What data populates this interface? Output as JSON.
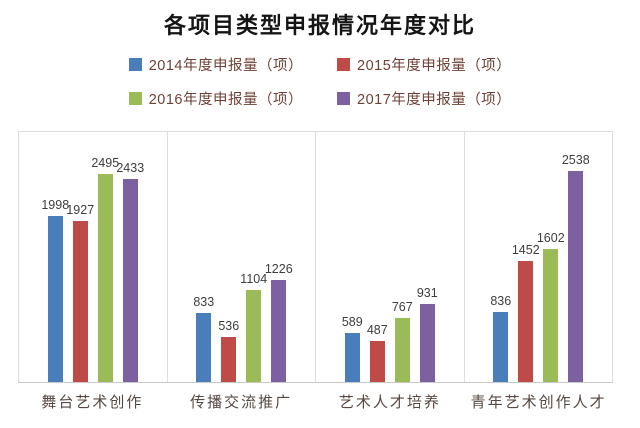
{
  "title": "各项目类型申报情况年度对比",
  "legend": {
    "text_color": "#6e4136",
    "items": [
      {
        "label": "2014年度申报量（项）",
        "color": "#4A7EBB"
      },
      {
        "label": "2015年度申报量（项）",
        "color": "#BE4B48"
      },
      {
        "label": "2016年度申报量（项）",
        "color": "#9BBB59"
      },
      {
        "label": "2017年度申报量（项）",
        "color": "#7D60A0"
      }
    ]
  },
  "chart_data": {
    "type": "bar",
    "title": "各项目类型申报情况年度对比",
    "categories": [
      "舞台艺术创作",
      "传播交流推广",
      "艺术人才培养",
      "青年艺术创作人才"
    ],
    "series": [
      {
        "name": "2014年度申报量（项）",
        "color": "#4A7EBB",
        "values": [
          1998,
          833,
          589,
          836
        ]
      },
      {
        "name": "2015年度申报量（项）",
        "color": "#BE4B48",
        "values": [
          1927,
          536,
          487,
          1452
        ]
      },
      {
        "name": "2016年度申报量（项）",
        "color": "#9BBB59",
        "values": [
          2495,
          1104,
          767,
          1602
        ]
      },
      {
        "name": "2017年度申报量（项）",
        "color": "#7D60A0",
        "values": [
          2433,
          1226,
          931,
          2538
        ]
      }
    ],
    "ylim": [
      0,
      3000
    ],
    "data_labels": true,
    "grid": "vertical-category-separators",
    "legend_position": "top",
    "axis_labels_visible": {
      "y_ticks": false,
      "x_categories": true
    }
  }
}
